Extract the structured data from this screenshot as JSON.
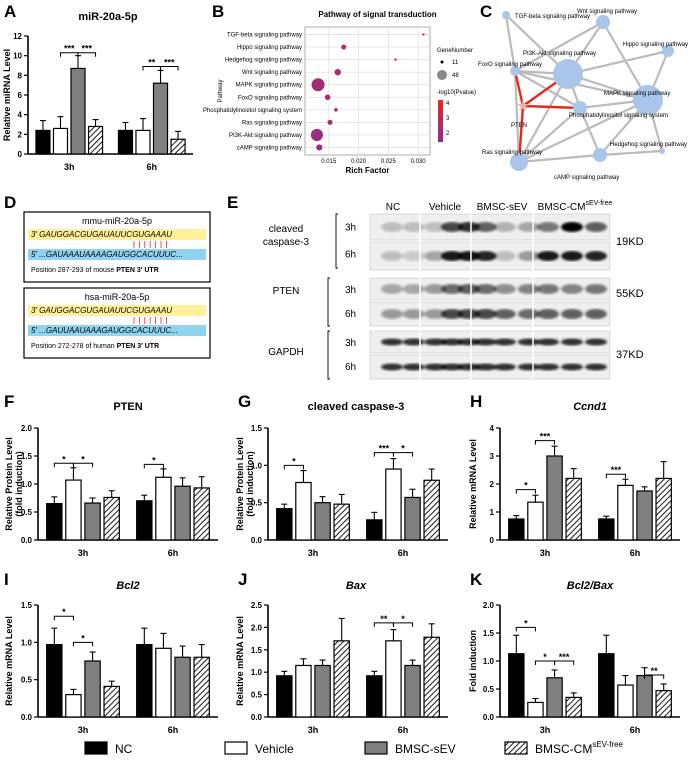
{
  "chart_data": [
    {
      "id": "A",
      "type": "bar",
      "panel": "A",
      "title": "miR-20a-5p",
      "ylabel": "Relative  miRNA Level",
      "categories": [
        "3h",
        "6h"
      ],
      "ylim": [
        0,
        12
      ],
      "yticks": [
        0,
        2,
        4,
        6,
        8,
        10,
        12
      ],
      "series": [
        {
          "name": "NC",
          "values": [
            2.4,
            2.4
          ],
          "err": [
            1.0,
            0.8
          ]
        },
        {
          "name": "Vehicle",
          "values": [
            2.6,
            2.4
          ],
          "err": [
            1.2,
            1.2
          ]
        },
        {
          "name": "BMSC-sEV",
          "values": [
            8.7,
            7.2
          ],
          "err": [
            1.3,
            1.3
          ]
        },
        {
          "name": "BMSC-CM",
          "values": [
            2.8,
            1.5
          ],
          "err": [
            0.7,
            0.8
          ]
        }
      ],
      "sig": [
        {
          "g": 0,
          "a": 1,
          "b": 2,
          "y": 10.3,
          "t": "***"
        },
        {
          "g": 0,
          "a": 2,
          "b": 3,
          "y": 10.3,
          "t": "***"
        },
        {
          "g": 1,
          "a": 1,
          "b": 2,
          "y": 8.9,
          "t": "**"
        },
        {
          "g": 1,
          "a": 2,
          "b": 3,
          "y": 8.9,
          "t": "***"
        }
      ]
    },
    {
      "id": "F",
      "type": "bar",
      "panel": "F",
      "title": "PTEN",
      "ylabel": "Relative Protein Level\n(fold induction)",
      "categories": [
        "3h",
        "6h"
      ],
      "ylim": [
        0,
        2.0
      ],
      "yticks": [
        "0.0",
        "0.5",
        "1.0",
        "1.5",
        "2.0"
      ],
      "series": [
        {
          "name": "NC",
          "values": [
            0.65,
            0.7
          ],
          "err": [
            0.12,
            0.1
          ]
        },
        {
          "name": "Vehicle",
          "values": [
            1.07,
            1.12
          ],
          "err": [
            0.22,
            0.15
          ]
        },
        {
          "name": "BMSC-sEV",
          "values": [
            0.66,
            0.96
          ],
          "err": [
            0.09,
            0.15
          ]
        },
        {
          "name": "BMSC-CM",
          "values": [
            0.76,
            0.93
          ],
          "err": [
            0.12,
            0.2
          ]
        }
      ],
      "sig": [
        {
          "g": 0,
          "a": 0,
          "b": 1,
          "y": 1.37,
          "t": "*"
        },
        {
          "g": 0,
          "a": 1,
          "b": 2,
          "y": 1.37,
          "t": "*"
        },
        {
          "g": 1,
          "a": 0,
          "b": 1,
          "y": 1.35,
          "t": "*"
        }
      ]
    },
    {
      "id": "G",
      "type": "bar",
      "panel": "G",
      "title": "cleaved caspase-3",
      "ylabel": "Relative Protein Level\n(fold induction)",
      "categories": [
        "3h",
        "6h"
      ],
      "ylim": [
        0,
        1.5
      ],
      "yticks": [
        "0.0",
        "0.5",
        "1.0",
        "1.5"
      ],
      "series": [
        {
          "name": "NC",
          "values": [
            0.42,
            0.27
          ],
          "err": [
            0.06,
            0.1
          ]
        },
        {
          "name": "Vehicle",
          "values": [
            0.77,
            0.95
          ],
          "err": [
            0.16,
            0.14
          ]
        },
        {
          "name": "BMSC-sEV",
          "values": [
            0.5,
            0.57
          ],
          "err": [
            0.08,
            0.11
          ]
        },
        {
          "name": "BMSC-CM",
          "values": [
            0.48,
            0.8
          ],
          "err": [
            0.13,
            0.15
          ]
        }
      ],
      "sig": [
        {
          "g": 0,
          "a": 0,
          "b": 1,
          "y": 1.0,
          "t": "*"
        },
        {
          "g": 1,
          "a": 0,
          "b": 1,
          "y": 1.17,
          "t": "***"
        },
        {
          "g": 1,
          "a": 1,
          "b": 2,
          "y": 1.17,
          "t": "*"
        }
      ]
    },
    {
      "id": "H",
      "type": "bar",
      "panel": "H",
      "title": "Ccnd1",
      "italic": true,
      "ylabel": "Relative  mRNA Level",
      "categories": [
        "3h",
        "6h"
      ],
      "ylim": [
        0,
        4
      ],
      "yticks": [
        0,
        1,
        2,
        3,
        4
      ],
      "series": [
        {
          "name": "NC",
          "values": [
            0.75,
            0.75
          ],
          "err": [
            0.12,
            0.1
          ]
        },
        {
          "name": "Vehicle",
          "values": [
            1.35,
            1.95
          ],
          "err": [
            0.25,
            0.22
          ]
        },
        {
          "name": "BMSC-sEV",
          "values": [
            3.0,
            1.75
          ],
          "err": [
            0.35,
            0.15
          ]
        },
        {
          "name": "BMSC-CM",
          "values": [
            2.2,
            2.2
          ],
          "err": [
            0.35,
            0.6
          ]
        }
      ],
      "sig": [
        {
          "g": 0,
          "a": 0,
          "b": 1,
          "y": 1.8,
          "t": "*"
        },
        {
          "g": 0,
          "a": 1,
          "b": 2,
          "y": 3.55,
          "t": "***"
        },
        {
          "g": 1,
          "a": 0,
          "b": 1,
          "y": 2.35,
          "t": "***"
        }
      ]
    },
    {
      "id": "I",
      "type": "bar",
      "panel": "I",
      "title": "Bcl2",
      "italic": true,
      "ylabel": "Relative  mRNA Level",
      "categories": [
        "3h",
        "6h"
      ],
      "ylim": [
        0,
        1.5
      ],
      "yticks": [
        "0.0",
        "0.5",
        "1.0",
        "1.5"
      ],
      "series": [
        {
          "name": "NC",
          "values": [
            0.97,
            0.97
          ],
          "err": [
            0.22,
            0.22
          ]
        },
        {
          "name": "Vehicle",
          "values": [
            0.3,
            0.92
          ],
          "err": [
            0.07,
            0.2
          ]
        },
        {
          "name": "BMSC-sEV",
          "values": [
            0.75,
            0.8
          ],
          "err": [
            0.12,
            0.15
          ]
        },
        {
          "name": "BMSC-CM",
          "values": [
            0.41,
            0.8
          ],
          "err": [
            0.07,
            0.17
          ]
        }
      ],
      "sig": [
        {
          "g": 0,
          "a": 0,
          "b": 1,
          "y": 1.35,
          "t": "*"
        },
        {
          "g": 0,
          "a": 1,
          "b": 2,
          "y": 1.0,
          "t": "*"
        }
      ]
    },
    {
      "id": "J",
      "type": "bar",
      "panel": "J",
      "title": "Bax",
      "italic": true,
      "ylabel": "Relative  mRNA Level",
      "categories": [
        "3h",
        "6h"
      ],
      "ylim": [
        0,
        2.5
      ],
      "yticks": [
        "0.0",
        "0.5",
        "1.0",
        "1.5",
        "2.0",
        "2.5"
      ],
      "series": [
        {
          "name": "NC",
          "values": [
            0.92,
            0.92
          ],
          "err": [
            0.1,
            0.1
          ]
        },
        {
          "name": "Vehicle",
          "values": [
            1.15,
            1.7
          ],
          "err": [
            0.15,
            0.25
          ]
        },
        {
          "name": "BMSC-sEV",
          "values": [
            1.15,
            1.15
          ],
          "err": [
            0.12,
            0.12
          ]
        },
        {
          "name": "BMSC-CM",
          "values": [
            1.7,
            1.78
          ],
          "err": [
            0.5,
            0.3
          ]
        }
      ],
      "sig": [
        {
          "g": 1,
          "a": 0,
          "b": 1,
          "y": 2.1,
          "t": "**"
        },
        {
          "g": 1,
          "a": 1,
          "b": 2,
          "y": 2.1,
          "t": "*"
        }
      ]
    },
    {
      "id": "K",
      "type": "bar",
      "panel": "K",
      "title": "Bcl2/Bax",
      "italic": true,
      "ylabel": "Fold induction",
      "categories": [
        "3h",
        "6h"
      ],
      "ylim": [
        0,
        2.0
      ],
      "yticks": [
        "0.0",
        "0.5",
        "1.0",
        "1.5",
        "2.0"
      ],
      "series": [
        {
          "name": "NC",
          "values": [
            1.13,
            1.13
          ],
          "err": [
            0.33,
            0.33
          ]
        },
        {
          "name": "Vehicle",
          "values": [
            0.26,
            0.57
          ],
          "err": [
            0.07,
            0.17
          ]
        },
        {
          "name": "BMSC-sEV",
          "values": [
            0.7,
            0.74
          ],
          "err": [
            0.14,
            0.14
          ]
        },
        {
          "name": "BMSC-CM",
          "values": [
            0.35,
            0.47
          ],
          "err": [
            0.08,
            0.12
          ]
        }
      ],
      "sig": [
        {
          "g": 0,
          "a": 0,
          "b": 1,
          "y": 1.6,
          "t": "*"
        },
        {
          "g": 0,
          "a": 1,
          "b": 2,
          "y": 1.0,
          "t": "*"
        },
        {
          "g": 0,
          "a": 2,
          "b": 3,
          "y": 1.0,
          "t": "***"
        },
        {
          "g": 1,
          "a": 2,
          "b": 3,
          "y": 0.75,
          "t": "**"
        }
      ]
    },
    {
      "id": "B",
      "type": "scatter",
      "panel": "B",
      "title": "Pathway of signal transduction",
      "xlabel": "Rich Factor",
      "ylabel": "Pathway",
      "xlim": [
        0.011,
        0.032
      ],
      "xticks": [
        "0.015",
        "0.020",
        "0.025",
        "0.030"
      ],
      "categories": [
        "TGF-beta signaling pathway",
        "Hippo signaling pathway",
        "Hedgehog signaling pathway",
        "Wnt signaling pathway",
        "MAPK signaling pathway",
        "FoxO signaling pathway",
        "Phosphatidylinositol signaling system",
        "Ras signaling pathway",
        "PI3K-Akt signaling pathway",
        "cAMP signaling pathway"
      ],
      "points": [
        {
          "x": 0.0309,
          "size": 11,
          "c": 4.5
        },
        {
          "x": 0.0175,
          "size": 20,
          "c": 3.3
        },
        {
          "x": 0.0262,
          "size": 11,
          "c": 3.5
        },
        {
          "x": 0.0165,
          "size": 25,
          "c": 2.8
        },
        {
          "x": 0.0132,
          "size": 48,
          "c": 2.6
        },
        {
          "x": 0.0148,
          "size": 22,
          "c": 2.8
        },
        {
          "x": 0.0162,
          "size": 15,
          "c": 3.0
        },
        {
          "x": 0.0152,
          "size": 20,
          "c": 2.6
        },
        {
          "x": 0.013,
          "size": 45,
          "c": 2.3
        },
        {
          "x": 0.0134,
          "size": 24,
          "c": 2.3
        }
      ],
      "legend": {
        "size_title": "GeneNumber",
        "size_values": [
          "11",
          "48"
        ],
        "color_title": "-log10(Pvalue)",
        "color_ticks": [
          "4",
          "3",
          "2"
        ]
      }
    }
  ],
  "panelC": {
    "nodes": [
      {
        "label": "TGF-beta signaling pathway",
        "r": 4
      },
      {
        "label": "Wnt signaling pathway",
        "r": 7
      },
      {
        "label": "PI3K-Akt signaling pathway",
        "r": 15
      },
      {
        "label": "Hippo signaling pathway",
        "r": 6
      },
      {
        "label": "FoxO signaling pathway",
        "r": 5
      },
      {
        "label": "MAPK signaling pathway",
        "r": 15
      },
      {
        "label": "Phosphatidylinositol signaling system",
        "r": 7
      },
      {
        "label": "PTEN",
        "r": 5
      },
      {
        "label": "Ras signaling pathway",
        "r": 9
      },
      {
        "label": "cAMP signaling pathway",
        "r": 7
      },
      {
        "label": "Hedgehog signaling pathway",
        "r": 3
      }
    ]
  },
  "panelD": {
    "boxes": [
      {
        "title": "mmu-miR-20a-5p",
        "seq1": "3′    GAUGGACGUGAUAUUCGUGAAAU",
        "seq2": "5′    ...GAUAAAUAAAAGAUGGCACUUUC...",
        "pos": "Position 287-293 of mouse ",
        "gene": "PTEN 3′ UTR"
      },
      {
        "title": "hsa-miR-20a-5p",
        "seq1": "3′    GAUGGACGUGAUAUUCGUGAAAU",
        "seq2": "5′    ...GAUUAAUAAAGAUGGCACUUUC...",
        "pos": "Position 272-278 of human ",
        "gene": "PTEN 3′ UTR"
      }
    ]
  },
  "panelE": {
    "columns": [
      "NC",
      "Vehicle",
      "BMSC-sEV",
      "BMSC-CM"
    ],
    "col_sup": "sEV-free",
    "proteins": [
      {
        "name": "cleaved\ncaspase-3",
        "size": "19KD"
      },
      {
        "name": "PTEN",
        "size": "55KD"
      },
      {
        "name": "GAPDH",
        "size": "37KD"
      }
    ],
    "times": [
      "3h",
      "6h"
    ]
  },
  "legend": {
    "items": [
      "NC",
      "Vehicle",
      "BMSC-sEV",
      "BMSC-CM"
    ],
    "sup": "sEV-free"
  },
  "colors": {
    "nc": "#000000",
    "vehicle": "#ffffff",
    "sev": "#808080",
    "cm": "hatch",
    "edge_red": "#e8281e",
    "node_blue": "#a9c6ea",
    "gradient_top": "#e8281e",
    "gradient_bottom": "#8e2e8e"
  }
}
